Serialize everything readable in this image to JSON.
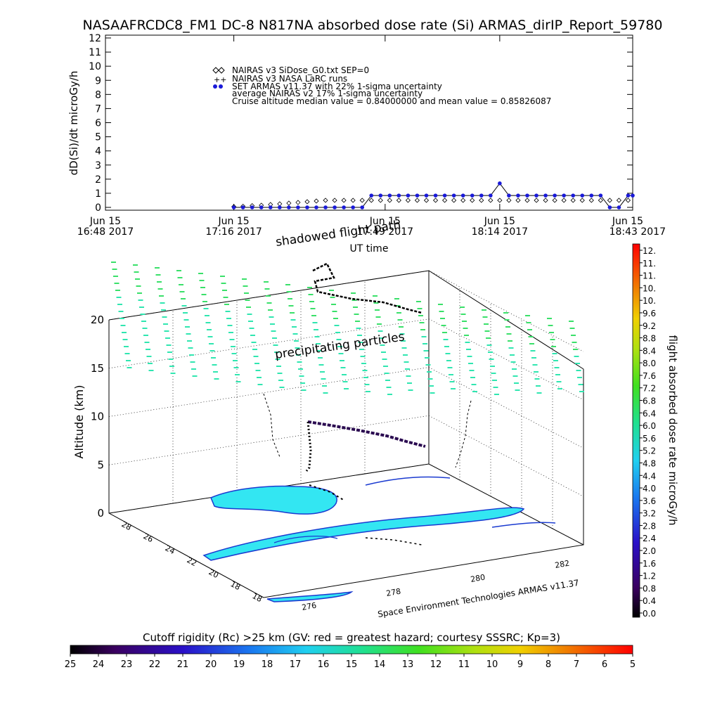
{
  "title": "NASAAFRCDC8_FM1 DC-8   N817NA absorbed dose rate (Si) ARMAS_dirIP_Report_59780",
  "chart_data": [
    {
      "type": "scatter",
      "ylabel": "dD(Si)/dt microGy/h",
      "xlabel": "UT time",
      "ylim": [
        0,
        12
      ],
      "y_ticks": [
        "0",
        "1",
        "2",
        "3",
        "4",
        "5",
        "6",
        "7",
        "8",
        "9",
        "10",
        "11",
        "12"
      ],
      "x_ticks": [
        {
          "t": 0,
          "d": "Jun 15",
          "tm": "16:48 2017"
        },
        {
          "t": 28,
          "d": "Jun 15",
          "tm": "17:16 2017"
        },
        {
          "t": 61,
          "d": "Jun 15",
          "tm": "17:49 2017"
        },
        {
          "t": 86,
          "d": "Jun 15",
          "tm": "18:14 2017"
        },
        {
          "t": 115,
          "d": "Jun 15",
          "tm": "18:43 2017"
        }
      ],
      "legend": [
        "NAIRAS v3 SiDose_G0.txt SEP=0",
        "NAIRAS v3 NASA LaRC runs",
        "SET ARMAS v11.37 with 22% 1-sigma uncertainty",
        "average NAIRAS v2 17% 1-sigma uncertainty",
        "Cruise altitude median value = 0.84000000 and mean value = 0.85826087"
      ],
      "series": [
        {
          "name": "NAIRAS v3 SiDose_G0.txt SEP=0",
          "marker": "diamond",
          "color": "#000000",
          "x": [
            28,
            30,
            32,
            34,
            36,
            38,
            40,
            42,
            44,
            46,
            48,
            50,
            52,
            54,
            56,
            58,
            60,
            62,
            64,
            66,
            68,
            70,
            72,
            74,
            76,
            78,
            80,
            82,
            84,
            86,
            88,
            90,
            92,
            94,
            96,
            98,
            100,
            102,
            104,
            106,
            108,
            110,
            112,
            114
          ],
          "y": [
            0.05,
            0.08,
            0.12,
            0.15,
            0.2,
            0.25,
            0.3,
            0.35,
            0.4,
            0.45,
            0.5,
            0.5,
            0.5,
            0.5,
            0.5,
            0.5,
            0.5,
            0.5,
            0.5,
            0.5,
            0.5,
            0.5,
            0.5,
            0.5,
            0.5,
            0.5,
            0.5,
            0.5,
            0.5,
            0.5,
            0.5,
            0.5,
            0.5,
            0.5,
            0.5,
            0.5,
            0.5,
            0.5,
            0.5,
            0.5,
            0.5,
            0.5,
            0.5,
            0.5
          ]
        },
        {
          "name": "SET ARMAS v11.37 with 22% 1-sigma uncertainty",
          "marker": "dot",
          "color": "#1a1ad8",
          "x": [
            28,
            30,
            32,
            34,
            36,
            38,
            40,
            42,
            44,
            46,
            48,
            50,
            52,
            54,
            56,
            58,
            60,
            62,
            64,
            66,
            68,
            70,
            72,
            74,
            76,
            78,
            80,
            82,
            84,
            86,
            88,
            90,
            92,
            94,
            96,
            98,
            100,
            102,
            104,
            106,
            108,
            110,
            112,
            114,
            115
          ],
          "y": [
            0,
            0,
            0,
            0,
            0,
            0,
            0,
            0,
            0,
            0,
            0,
            0,
            0,
            0,
            0,
            0.84,
            0.84,
            0.84,
            0.84,
            0.84,
            0.84,
            0.84,
            0.84,
            0.84,
            0.84,
            0.84,
            0.84,
            0.84,
            0.84,
            1.7,
            0.84,
            0.84,
            0.84,
            0.84,
            0.84,
            0.84,
            0.84,
            0.84,
            0.84,
            0.84,
            0.84,
            0,
            0,
            0.84,
            0.84
          ]
        }
      ]
    },
    {
      "type": "scatter",
      "zlabel": "Altitude (km)",
      "z_ticks": [
        "0",
        "5",
        "10",
        "15",
        "20"
      ],
      "lat_ticks": [
        "18",
        "18",
        "20",
        "22",
        "24",
        "26",
        "28"
      ],
      "lon_ticks": [
        "276",
        "278",
        "280",
        "282"
      ],
      "annotations": [
        "shadowed flight path",
        "precipitating particles"
      ],
      "credit": "Space Environment Technologies ARMAS v11.37"
    }
  ],
  "colorbar_right": {
    "label": "flight absorbed dose rate microGy/h",
    "ticks": [
      "12.",
      "11.",
      "11.",
      "10.",
      "10.",
      "9.6",
      "9.2",
      "8.8",
      "8.4",
      "8.0",
      "7.6",
      "7.2",
      "6.8",
      "6.4",
      "6.0",
      "5.6",
      "5.2",
      "4.8",
      "4.4",
      "4.0",
      "3.6",
      "3.2",
      "2.8",
      "2.4",
      "2.0",
      "1.6",
      "1.2",
      "0.8",
      "0.4",
      "0.0"
    ]
  },
  "colorbar_bottom": {
    "label": "Cutoff rigidity (Rc) >25 km (GV: red = greatest hazard; courtesy SSSRC; Kp=3)",
    "ticks": [
      "25",
      "24",
      "23",
      "22",
      "21",
      "20",
      "19",
      "18",
      "17",
      "16",
      "15",
      "14",
      "13",
      "12",
      "11",
      "10",
      "9",
      "8",
      "7",
      "6",
      "5"
    ]
  },
  "colors": {
    "armas": "#1a1ad8",
    "rigidity_fill": "#33e6f2",
    "rigidity_edge": "#1a3ad0",
    "particles_high": "#3ae06a",
    "particles_low": "#30e6b0"
  }
}
